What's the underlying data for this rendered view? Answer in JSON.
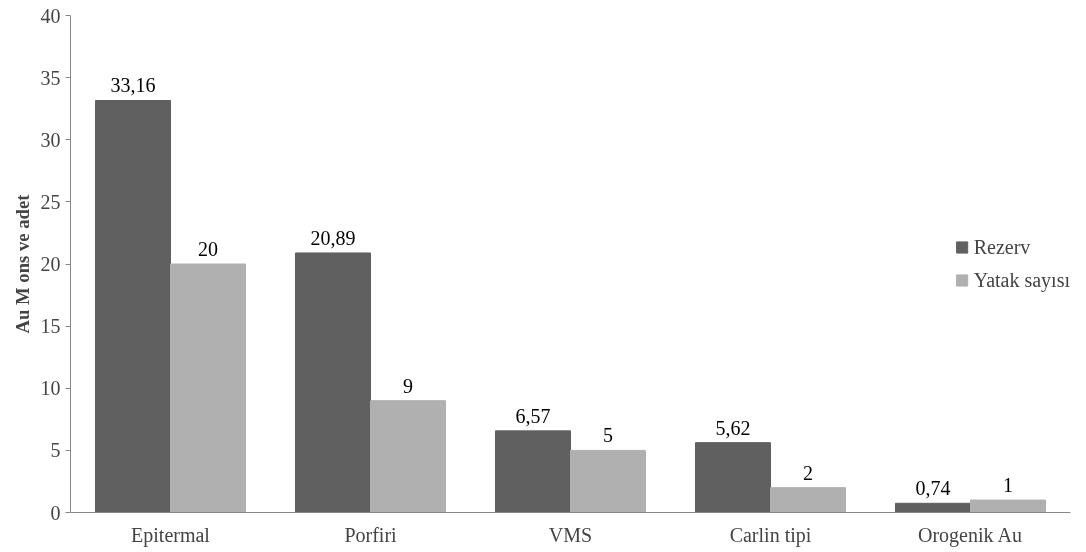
{
  "chart_data": {
    "type": "bar",
    "ylabel": "Au M ons ve adet",
    "categories": [
      "Epitermal",
      "Porfiri",
      "VMS",
      "Carlin tipi",
      "Orogenik Au"
    ],
    "series": [
      {
        "name": "Rezerv",
        "color": "#606060",
        "values": [
          33.16,
          20.89,
          6.57,
          5.62,
          0.74
        ],
        "value_labels": [
          "33,16",
          "20,89",
          "6,57",
          "5,62",
          "0,74"
        ]
      },
      {
        "name": "Yatak sayısı",
        "color": "#b0b0b0",
        "values": [
          20,
          9,
          5,
          2,
          1
        ],
        "value_labels": [
          "20",
          "9",
          "5",
          "2",
          "1"
        ]
      }
    ],
    "ylim": [
      0,
      40
    ],
    "yticks": [
      0,
      5,
      10,
      15,
      20,
      25,
      30,
      35,
      40
    ],
    "grid": false,
    "legend": "right"
  }
}
